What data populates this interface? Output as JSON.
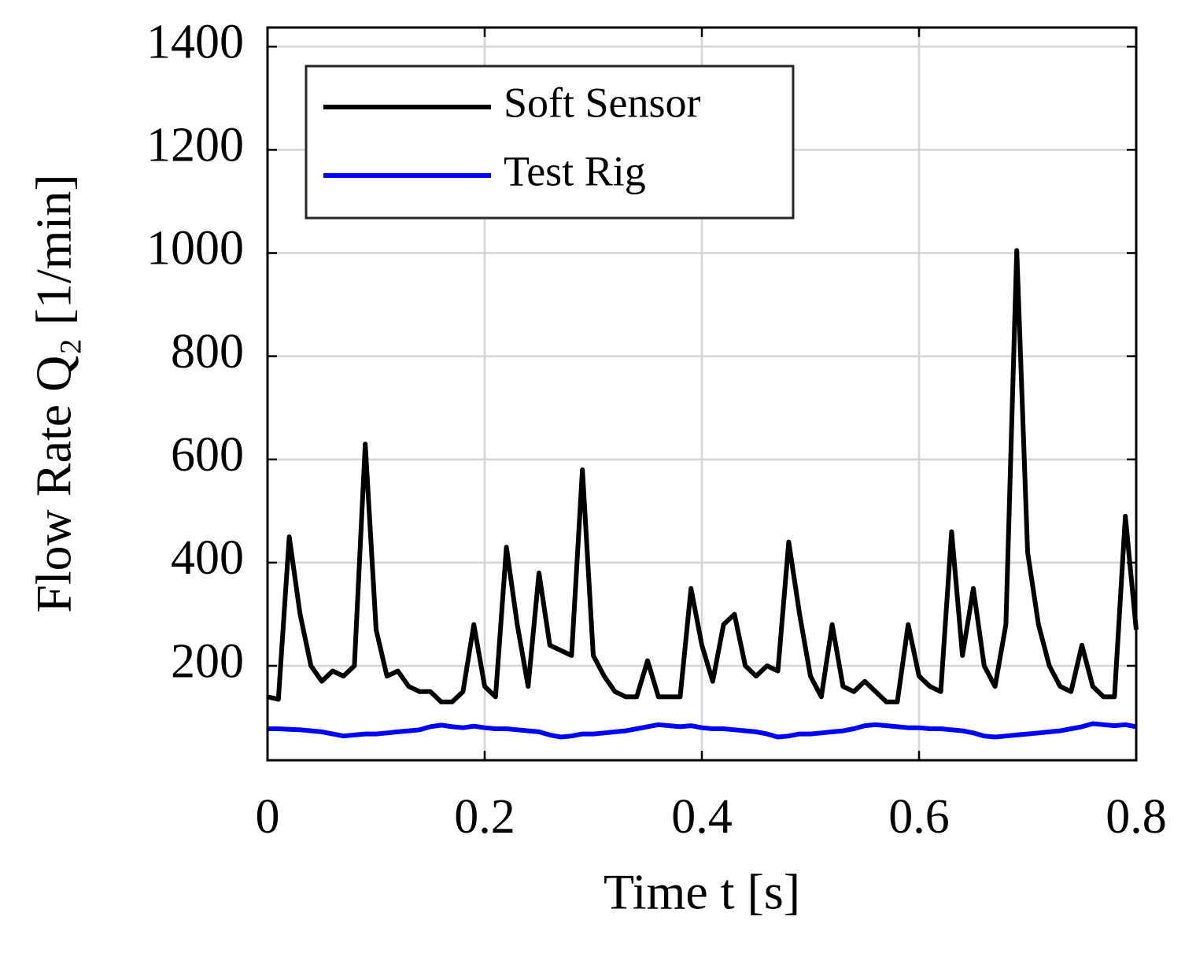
{
  "chart_data": {
    "type": "line",
    "xlabel": "Time t [s]",
    "ylabel": "Flow Rate Q₂ [1/min]",
    "x": [
      0,
      0.01,
      0.02,
      0.03,
      0.04,
      0.05,
      0.06,
      0.07,
      0.08,
      0.09,
      0.1,
      0.11,
      0.12,
      0.13,
      0.14,
      0.15,
      0.16,
      0.17,
      0.18,
      0.19,
      0.2,
      0.21,
      0.22,
      0.23,
      0.24,
      0.25,
      0.26,
      0.27,
      0.28,
      0.29,
      0.3,
      0.31,
      0.32,
      0.33,
      0.34,
      0.35,
      0.36,
      0.37,
      0.38,
      0.39,
      0.4,
      0.41,
      0.42,
      0.43,
      0.44,
      0.45,
      0.46,
      0.47,
      0.48,
      0.49,
      0.5,
      0.51,
      0.52,
      0.53,
      0.54,
      0.55,
      0.56,
      0.57,
      0.58,
      0.59,
      0.6,
      0.61,
      0.62,
      0.63,
      0.64,
      0.65,
      0.66,
      0.67,
      0.68,
      0.69,
      0.7,
      0.71,
      0.72,
      0.73,
      0.74,
      0.75,
      0.76,
      0.77,
      0.78,
      0.79,
      0.8
    ],
    "series": [
      {
        "name": "Soft Sensor",
        "color": "#000000",
        "values": [
          140,
          135,
          450,
          300,
          200,
          170,
          190,
          180,
          200,
          630,
          270,
          180,
          190,
          160,
          150,
          150,
          130,
          130,
          150,
          280,
          160,
          140,
          430,
          280,
          160,
          380,
          240,
          230,
          220,
          580,
          220,
          180,
          150,
          140,
          140,
          210,
          140,
          140,
          140,
          350,
          240,
          170,
          280,
          300,
          200,
          180,
          200,
          190,
          440,
          300,
          180,
          140,
          280,
          160,
          150,
          170,
          150,
          130,
          130,
          280,
          180,
          160,
          150,
          460,
          220,
          350,
          200,
          160,
          280,
          1005,
          420,
          280,
          200,
          160,
          150,
          240,
          160,
          140,
          140,
          490,
          270
        ]
      },
      {
        "name": "Test Rig",
        "color": "#0000ff",
        "values": [
          78,
          78,
          77,
          76,
          74,
          72,
          68,
          64,
          66,
          68,
          68,
          70,
          72,
          74,
          76,
          82,
          85,
          82,
          80,
          83,
          80,
          78,
          78,
          76,
          74,
          72,
          66,
          62,
          64,
          68,
          68,
          70,
          72,
          74,
          78,
          82,
          86,
          84,
          82,
          84,
          80,
          78,
          78,
          76,
          74,
          72,
          68,
          62,
          64,
          68,
          68,
          70,
          72,
          74,
          78,
          84,
          86,
          84,
          82,
          80,
          80,
          78,
          78,
          76,
          74,
          70,
          64,
          62,
          64,
          66,
          68,
          70,
          72,
          74,
          78,
          82,
          88,
          86,
          84,
          86,
          82
        ]
      }
    ],
    "xlim": [
      0,
      0.8
    ],
    "xticks": [
      0,
      0.2,
      0.4,
      0.6,
      0.8
    ],
    "ylim": [
      17,
      1437
    ],
    "yticks": [
      200,
      400,
      600,
      800,
      1000,
      1200,
      1400
    ],
    "grid": true,
    "legend": "upper left"
  }
}
